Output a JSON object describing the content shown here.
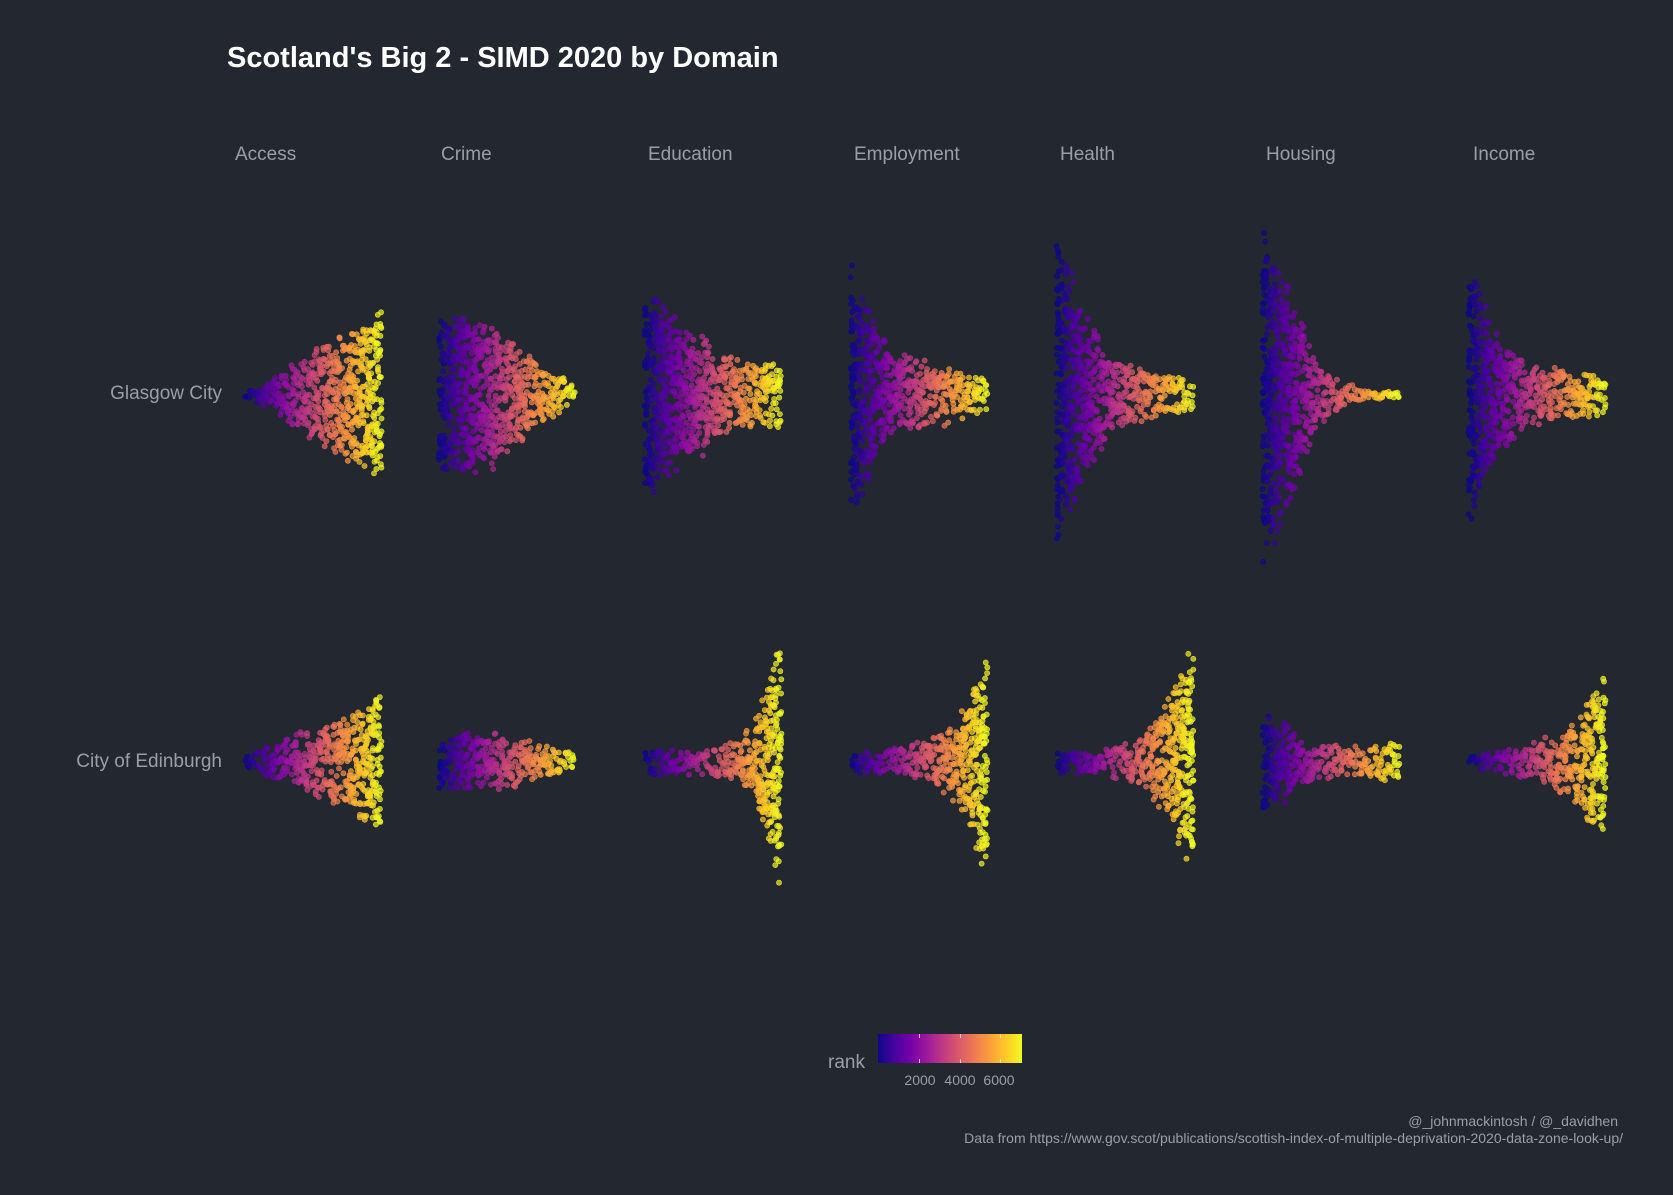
{
  "chart_data": {
    "type": "scatter",
    "subtype": "beeswarm",
    "title": "Scotland's Big 2 - SIMD 2020 by Domain",
    "facets": [
      "Access",
      "Crime",
      "Education",
      "Employment",
      "Health",
      "Housing",
      "Income"
    ],
    "rows": [
      "Glasgow City",
      "City of Edinburgh"
    ],
    "x": "rank",
    "xlim": [
      1,
      6976
    ],
    "color_scale": {
      "name": "rank",
      "palette": "plasma",
      "colors": [
        "#0d0887",
        "#46039f",
        "#7201a8",
        "#9c179e",
        "#bd3786",
        "#d8576b",
        "#ed7953",
        "#fb9f3a",
        "#fdca26",
        "#f0f921"
      ],
      "ticks": [
        2000,
        4000,
        6000
      ],
      "tick_labels": [
        "2000",
        "4000",
        "6000"
      ]
    },
    "swarm_width_profile": {
      "Glasgow City": {
        "Access": [
          0.05,
          0.22,
          0.42,
          0.62,
          0.82,
          1.0
        ],
        "Crime": [
          0.85,
          0.9,
          0.78,
          0.55,
          0.3,
          0.12
        ],
        "Education": [
          0.95,
          0.75,
          0.55,
          0.38,
          0.28,
          0.32
        ],
        "Employment": [
          1.0,
          0.48,
          0.32,
          0.26,
          0.2,
          0.15
        ],
        "Health": [
          1.0,
          0.5,
          0.25,
          0.18,
          0.13,
          0.1
        ],
        "Housing": [
          1.0,
          0.65,
          0.2,
          0.08,
          0.03,
          0.02
        ],
        "Income": [
          1.0,
          0.45,
          0.25,
          0.2,
          0.18,
          0.16
        ]
      },
      "City of Edinburgh": {
        "Access": [
          0.08,
          0.25,
          0.4,
          0.5,
          0.7,
          1.0
        ],
        "Crime": [
          0.55,
          0.62,
          0.6,
          0.5,
          0.35,
          0.18
        ],
        "Education": [
          0.1,
          0.12,
          0.1,
          0.15,
          0.3,
          1.0
        ],
        "Employment": [
          0.1,
          0.12,
          0.15,
          0.25,
          0.42,
          1.0
        ],
        "Health": [
          0.1,
          0.1,
          0.12,
          0.22,
          0.45,
          1.0
        ],
        "Housing": [
          0.6,
          0.35,
          0.2,
          0.18,
          0.17,
          0.22
        ],
        "Income": [
          0.08,
          0.12,
          0.2,
          0.3,
          0.5,
          1.0
        ]
      }
    }
  },
  "captions": {
    "credit": "@_johnmackintosh / @_davidhen",
    "source": "Data from https://www.gov.scot/publications/scottish-index-of-multiple-deprivation-2020-data-zone-look-up/"
  }
}
